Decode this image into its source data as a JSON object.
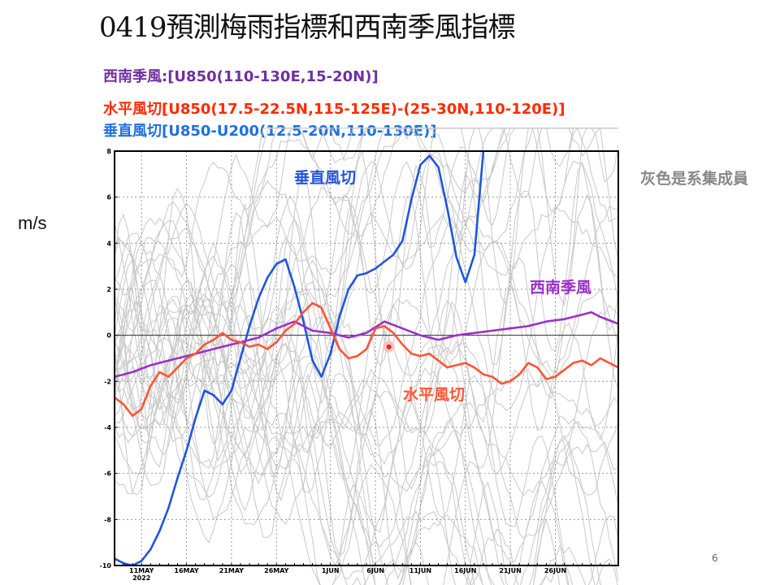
{
  "title": "0419預測梅雨指標和西南季風指標",
  "legend": {
    "sw_monsoon": "西南季風:[U850(110-130E,15-20N)]",
    "horizontal_shear": "水平風切[U850(17.5-22.5N,115-125E)-(25-30N,110-120E)]",
    "vertical_shear": "垂直風切[U850-U200(12.5-20N,110-130E)]"
  },
  "unit": "m/s",
  "ensemble_note": "灰色是系集成員",
  "page_number": "6",
  "colors": {
    "sw_monsoon": "#9b30c8",
    "horizontal_shear": "#ff5533",
    "vertical_shear": "#2255dd",
    "ensemble": "#c8c8c8"
  },
  "chart_data": {
    "type": "line",
    "ylim": [
      -10,
      8
    ],
    "xlim": [
      0,
      56
    ],
    "x_start_date": "2022-05-08",
    "yticks": [
      -10,
      -8,
      -6,
      -4,
      -2,
      0,
      2,
      4,
      6,
      8
    ],
    "xticks": [
      {
        "day": 3,
        "label": "11MAY",
        "sub": "2022"
      },
      {
        "day": 8,
        "label": "16MAY"
      },
      {
        "day": 13,
        "label": "21MAY"
      },
      {
        "day": 18,
        "label": "26MAY"
      },
      {
        "day": 24,
        "label": "1JUN"
      },
      {
        "day": 29,
        "label": "6JUN"
      },
      {
        "day": 34,
        "label": "11JUN"
      },
      {
        "day": 39,
        "label": "16JUN"
      },
      {
        "day": 44,
        "label": "21JUN"
      },
      {
        "day": 49,
        "label": "26JUN"
      }
    ],
    "grid": true,
    "annotations": [
      {
        "text": "垂直風切",
        "series": "vertical_shear"
      },
      {
        "text": "西南季風",
        "series": "sw_monsoon"
      },
      {
        "text": "水平風切",
        "series": "horizontal_shear"
      }
    ],
    "series": [
      {
        "name": "垂直風切",
        "key": "vertical_shear",
        "points": [
          [
            0,
            -9.7
          ],
          [
            1,
            -9.9
          ],
          [
            2,
            -10.1
          ],
          [
            3,
            -9.8
          ],
          [
            4,
            -9.3
          ],
          [
            5,
            -8.5
          ],
          [
            6,
            -7.5
          ],
          [
            7,
            -6.2
          ],
          [
            8,
            -5.0
          ],
          [
            9,
            -3.6
          ],
          [
            10,
            -2.4
          ],
          [
            11,
            -2.6
          ],
          [
            12,
            -3.0
          ],
          [
            13,
            -2.4
          ],
          [
            14,
            -1.0
          ],
          [
            15,
            0.4
          ],
          [
            16,
            1.6
          ],
          [
            17,
            2.5
          ],
          [
            18,
            3.1
          ],
          [
            19,
            3.3
          ],
          [
            20,
            2.1
          ],
          [
            21,
            0.6
          ],
          [
            22,
            -1.1
          ],
          [
            23,
            -1.8
          ],
          [
            24,
            -0.8
          ],
          [
            25,
            0.8
          ],
          [
            26,
            2.0
          ],
          [
            27,
            2.6
          ],
          [
            28,
            2.7
          ],
          [
            29,
            2.9
          ],
          [
            30,
            3.2
          ],
          [
            31,
            3.5
          ],
          [
            32,
            4.1
          ],
          [
            33,
            5.9
          ],
          [
            34,
            7.4
          ],
          [
            35,
            7.8
          ],
          [
            36,
            7.3
          ],
          [
            37,
            5.5
          ],
          [
            38,
            3.4
          ],
          [
            39,
            2.3
          ],
          [
            40,
            3.5
          ],
          [
            41,
            8.0
          ]
        ]
      },
      {
        "name": "西南季風",
        "key": "sw_monsoon",
        "points": [
          [
            0,
            -1.8
          ],
          [
            2,
            -1.6
          ],
          [
            4,
            -1.3
          ],
          [
            6,
            -1.1
          ],
          [
            8,
            -0.9
          ],
          [
            10,
            -0.7
          ],
          [
            12,
            -0.5
          ],
          [
            14,
            -0.3
          ],
          [
            16,
            -0.1
          ],
          [
            18,
            0.3
          ],
          [
            20,
            0.6
          ],
          [
            22,
            0.2
          ],
          [
            24,
            0.1
          ],
          [
            26,
            -0.1
          ],
          [
            28,
            0.1
          ],
          [
            30,
            0.6
          ],
          [
            32,
            0.3
          ],
          [
            34,
            0.0
          ],
          [
            36,
            -0.2
          ],
          [
            38,
            0.0
          ],
          [
            40,
            0.1
          ],
          [
            42,
            0.2
          ],
          [
            44,
            0.3
          ],
          [
            46,
            0.4
          ],
          [
            48,
            0.6
          ],
          [
            50,
            0.7
          ],
          [
            52,
            0.9
          ],
          [
            53,
            1.0
          ],
          [
            54,
            0.8
          ],
          [
            56,
            0.5
          ]
        ]
      },
      {
        "name": "水平風切",
        "key": "horizontal_shear",
        "points": [
          [
            0,
            -2.7
          ],
          [
            1,
            -3.0
          ],
          [
            2,
            -3.5
          ],
          [
            3,
            -3.2
          ],
          [
            4,
            -2.2
          ],
          [
            5,
            -1.6
          ],
          [
            6,
            -1.8
          ],
          [
            7,
            -1.4
          ],
          [
            8,
            -1.0
          ],
          [
            9,
            -0.8
          ],
          [
            10,
            -0.4
          ],
          [
            11,
            -0.2
          ],
          [
            12,
            0.1
          ],
          [
            13,
            -0.2
          ],
          [
            14,
            -0.3
          ],
          [
            15,
            -0.5
          ],
          [
            16,
            -0.4
          ],
          [
            17,
            -0.6
          ],
          [
            18,
            -0.3
          ],
          [
            19,
            0.2
          ],
          [
            20,
            0.5
          ],
          [
            21,
            1.0
          ],
          [
            22,
            1.4
          ],
          [
            23,
            1.2
          ],
          [
            24,
            0.3
          ],
          [
            25,
            -0.6
          ],
          [
            26,
            -1.0
          ],
          [
            27,
            -0.9
          ],
          [
            28,
            -0.6
          ],
          [
            29,
            0.3
          ],
          [
            30,
            0.4
          ],
          [
            31,
            0.1
          ],
          [
            32,
            -0.4
          ],
          [
            33,
            -0.8
          ],
          [
            34,
            -0.9
          ],
          [
            35,
            -0.8
          ],
          [
            36,
            -1.1
          ],
          [
            37,
            -1.4
          ],
          [
            38,
            -1.3
          ],
          [
            39,
            -1.2
          ],
          [
            40,
            -1.4
          ],
          [
            41,
            -1.7
          ],
          [
            42,
            -1.8
          ],
          [
            43,
            -2.1
          ],
          [
            44,
            -2.0
          ],
          [
            45,
            -1.7
          ],
          [
            46,
            -1.2
          ],
          [
            47,
            -1.4
          ],
          [
            48,
            -1.9
          ],
          [
            49,
            -1.8
          ],
          [
            50,
            -1.5
          ],
          [
            51,
            -1.2
          ],
          [
            52,
            -1.1
          ],
          [
            53,
            -1.3
          ],
          [
            54,
            -1.0
          ],
          [
            55,
            -1.2
          ],
          [
            56,
            -1.4
          ]
        ]
      }
    ]
  }
}
